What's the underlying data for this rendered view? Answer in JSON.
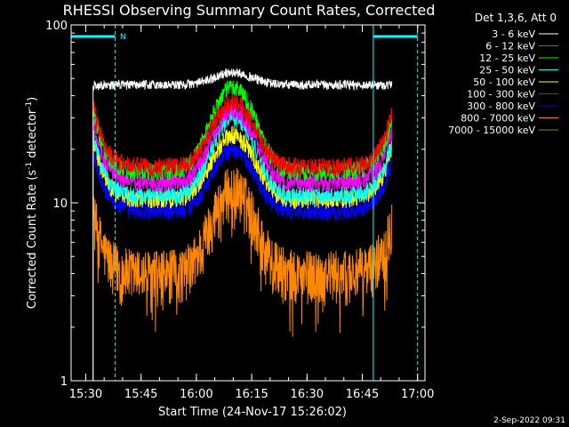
{
  "chart_data": {
    "type": "line",
    "title": "RHESSI Observing Summary Count Rates, Corrected",
    "xlabel": "Start Time (24-Nov-17 15:26:02)",
    "ylabel": "Corrected Count Rate (s⁻¹ detector⁻¹)",
    "ylabel_main": "Corrected Count Rate (s",
    "ylabel_sup1": "-1",
    "ylabel_mid": " detector",
    "ylabel_sup2": "-1",
    "ylabel_end": ")",
    "yscale": "log",
    "ylim": [
      1,
      100
    ],
    "xlim": [
      "15:26:02",
      "17:02:00"
    ],
    "x_ticks": [
      "15:30",
      "15:45",
      "16:00",
      "16:15",
      "16:30",
      "16:45",
      "17:00"
    ],
    "y_ticks": [
      "1",
      "10",
      "100"
    ],
    "legend_title": "Det 1,3,6, Att 0",
    "legend_position": "top-right",
    "annotation_flag": "N",
    "series": [
      {
        "name": "3 - 6 keV",
        "color": "#000000",
        "line_color": "#ffffff",
        "base": 46,
        "peak": 54
      },
      {
        "name": "6 - 12 keV",
        "color": "#ff00ff",
        "base": 13,
        "peak": 33
      },
      {
        "name": "12 - 25 keV",
        "color": "#00ff00",
        "base": 15,
        "peak": 45
      },
      {
        "name": "25 - 50 keV",
        "color": "#00ffff",
        "base": 11,
        "peak": 30
      },
      {
        "name": "50 - 100 keV",
        "color": "#ffff00",
        "base": 10.5,
        "peak": 24
      },
      {
        "name": "100 - 300 keV",
        "color": "#ff0000",
        "base": 16,
        "peak": 37
      },
      {
        "name": "300 - 800 keV",
        "color": "#0000ff",
        "base": 9,
        "peak": 20
      },
      {
        "name": "800 - 7000 keV",
        "color": "#ff8800",
        "base": 4,
        "peak": 12
      },
      {
        "name": "7000 - 15000 keV",
        "color": "#a08000",
        "base": 0,
        "peak": 0
      }
    ],
    "data_start": "15:32",
    "data_end": "16:53",
    "peak_time": "16:10",
    "peak_width_minutes": 7,
    "markers": [
      {
        "time": "15:26:02",
        "style": "solid",
        "color": "#00ffff"
      },
      {
        "time": "15:38",
        "style": "dashed",
        "color": "#00ffff"
      },
      {
        "time": "16:48",
        "style": "solid",
        "color": "#00ffff"
      },
      {
        "time": "17:00",
        "style": "dashed",
        "color": "#00ffff"
      }
    ],
    "footer": "2-Sep-2022 09:31"
  }
}
